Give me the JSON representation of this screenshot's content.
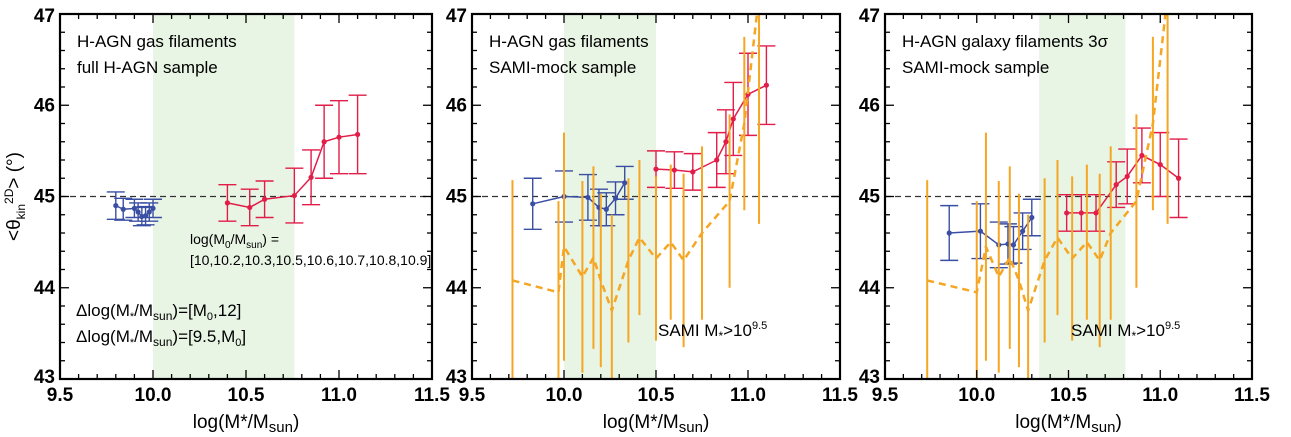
{
  "chart_data": [
    {
      "type": "line",
      "title": "",
      "annotation_lines": [
        "H-AGN gas filaments",
        "full H-AGN sample"
      ],
      "xlabel": "log(M*/Msun)",
      "ylabel": "<θkin2D> (°)",
      "xlim": [
        9.5,
        11.5
      ],
      "ylim": [
        43,
        47
      ],
      "xticks": [
        "9.5",
        "10.0",
        "10.5",
        "11.0",
        "11.5"
      ],
      "yticks": [
        "43",
        "44",
        "45",
        "46",
        "47"
      ],
      "reference_line_y": 45,
      "shaded_band_x": [
        10.0,
        10.76
      ],
      "series": [
        {
          "name": "Δlog(M*/Msun)=[9.5,M0]",
          "color": "#3a4fa3",
          "x": [
            9.8,
            9.84,
            9.9,
            9.92,
            9.94,
            9.96,
            9.98,
            10.0
          ],
          "y": [
            44.9,
            44.86,
            44.87,
            44.83,
            44.78,
            44.79,
            44.83,
            44.87
          ],
          "yerr": [
            0.15,
            0.12,
            0.1,
            0.1,
            0.1,
            0.1,
            0.1,
            0.1
          ]
        },
        {
          "name": "Δlog(M*/Msun)=[M0,12]",
          "color": "#e11d48",
          "x": [
            10.4,
            10.52,
            10.6,
            10.76,
            10.85,
            10.92,
            11.0,
            11.1
          ],
          "y": [
            44.93,
            44.88,
            44.97,
            45.01,
            45.21,
            45.6,
            45.65,
            45.68
          ],
          "yerr": [
            0.2,
            0.2,
            0.2,
            0.3,
            0.3,
            0.4,
            0.4,
            0.43
          ]
        }
      ],
      "formula_text": "log(M0/Msun) =",
      "m0_values_text": "[10,10.2,10.3,10.5,10.6,10.7,10.8,10.9]",
      "legend_entries": [
        "Δlog(M*/Msun)=[M0,12]",
        "Δlog(M*/Msun)=[9.5,M0]"
      ]
    },
    {
      "type": "line",
      "title": "",
      "annotation_lines": [
        "H-AGN gas filaments",
        "SAMI-mock sample"
      ],
      "xlabel": "log(M*/Msun)",
      "ylabel": "",
      "xlim": [
        9.5,
        11.5
      ],
      "ylim": [
        43,
        47
      ],
      "xticks": [
        "9.5",
        "10.0",
        "10.5",
        "11.0",
        "11.5"
      ],
      "yticks": [
        "43",
        "44",
        "45",
        "46",
        "47"
      ],
      "reference_line_y": 45,
      "shaded_band_x": [
        10.0,
        10.5
      ],
      "sami_label": "SAMI M*>10^9.5",
      "series": [
        {
          "name": "blue",
          "color": "#3a4fa3",
          "x": [
            9.83,
            10.0,
            10.13,
            10.19,
            10.23,
            10.28,
            10.33
          ],
          "y": [
            44.92,
            45.0,
            44.99,
            44.88,
            44.86,
            44.98,
            45.15
          ],
          "yerr": [
            0.28,
            0.28,
            0.25,
            0.2,
            0.18,
            0.18,
            0.18
          ]
        },
        {
          "name": "red",
          "color": "#e11d48",
          "x": [
            10.5,
            10.6,
            10.7,
            10.83,
            10.88,
            10.92,
            11.0,
            11.1
          ],
          "y": [
            45.3,
            45.29,
            45.27,
            45.4,
            45.6,
            45.85,
            46.12,
            46.22
          ],
          "yerr": [
            0.2,
            0.2,
            0.2,
            0.3,
            0.35,
            0.4,
            0.45,
            0.43
          ]
        },
        {
          "name": "SAMI",
          "color": "#f5a623",
          "style": "dashed",
          "x": [
            9.72,
            9.97,
            10.0,
            10.1,
            10.16,
            10.2,
            10.26,
            10.35,
            10.41,
            10.5,
            10.58,
            10.65,
            10.75,
            10.9,
            10.98,
            11.06
          ],
          "y": [
            44.08,
            43.95,
            44.45,
            44.12,
            44.33,
            44.08,
            43.75,
            44.3,
            44.55,
            44.32,
            44.5,
            44.3,
            44.6,
            44.95,
            45.8,
            47.2
          ],
          "yerr": [
            1.1,
            1.0,
            1.25,
            1.05,
            1.0,
            0.95,
            1.05,
            0.9,
            0.85,
            0.9,
            0.85,
            0.95,
            0.95,
            0.95,
            0.95,
            2.5
          ]
        }
      ]
    },
    {
      "type": "line",
      "title": "",
      "annotation_lines": [
        "H-AGN galaxy filaments 3σ",
        "SAMI-mock sample"
      ],
      "xlabel": "log(M*/Msun)",
      "ylabel": "",
      "xlim": [
        9.5,
        11.5
      ],
      "ylim": [
        43,
        47
      ],
      "xticks": [
        "9.5",
        "10.0",
        "10.5",
        "11.0",
        "11.5"
      ],
      "yticks": [
        "43",
        "44",
        "45",
        "46",
        "47"
      ],
      "reference_line_y": 45,
      "shaded_band_x": [
        10.34,
        10.81
      ],
      "sami_label": "SAMI M*>10^9.5",
      "series": [
        {
          "name": "blue",
          "color": "#3a4fa3",
          "x": [
            9.85,
            10.02,
            10.12,
            10.17,
            10.2,
            10.25,
            10.3
          ],
          "y": [
            44.6,
            44.62,
            44.47,
            44.48,
            44.47,
            44.62,
            44.77
          ],
          "yerr": [
            0.3,
            0.3,
            0.25,
            0.22,
            0.2,
            0.2,
            0.2
          ]
        },
        {
          "name": "red",
          "color": "#e11d48",
          "x": [
            10.49,
            10.57,
            10.65,
            10.76,
            10.82,
            10.9,
            11.0,
            11.1
          ],
          "y": [
            44.82,
            44.82,
            44.82,
            45.13,
            45.22,
            45.45,
            45.35,
            45.2
          ],
          "yerr": [
            0.2,
            0.2,
            0.2,
            0.25,
            0.3,
            0.3,
            0.35,
            0.43
          ]
        },
        {
          "name": "SAMI",
          "color": "#f5a623",
          "style": "dashed",
          "x": [
            9.73,
            10.0,
            10.05,
            10.12,
            10.18,
            10.23,
            10.28,
            10.37,
            10.44,
            10.52,
            10.6,
            10.67,
            10.73,
            10.87,
            10.96,
            11.04
          ],
          "y": [
            44.08,
            43.95,
            44.45,
            44.12,
            44.33,
            44.08,
            43.75,
            44.3,
            44.55,
            44.32,
            44.5,
            44.3,
            44.6,
            44.95,
            45.8,
            47.2
          ],
          "yerr": [
            1.1,
            1.0,
            1.25,
            1.05,
            1.0,
            0.95,
            1.05,
            0.9,
            0.85,
            0.9,
            0.85,
            0.95,
            0.95,
            0.95,
            0.95,
            2.5
          ]
        }
      ]
    }
  ],
  "colors": {
    "blue": "#3a4fa3",
    "red": "#e11d48",
    "orange": "#f5a623",
    "band": "#e8f4e4"
  }
}
